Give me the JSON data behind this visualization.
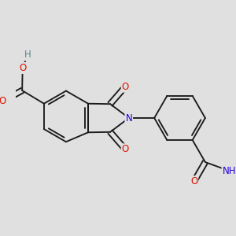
{
  "background_color": "#e0e0e0",
  "bond_color": "#1a1a1a",
  "atom_colors": {
    "O": "#dd1100",
    "N": "#2200dd",
    "H": "#558888",
    "C": "#1a1a1a"
  },
  "figsize": [
    3.0,
    3.0
  ],
  "dpi": 100
}
